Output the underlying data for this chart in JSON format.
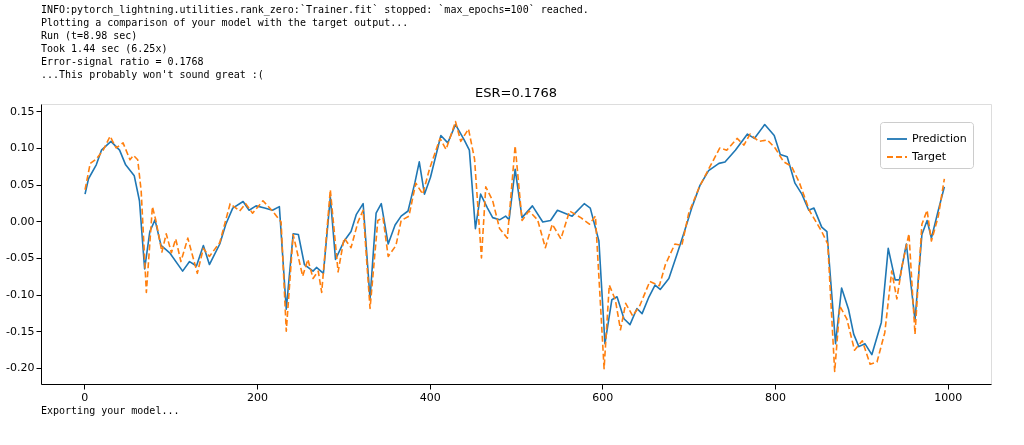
{
  "chart_data": {
    "type": "line",
    "title": "ESR=0.1768",
    "annotations": [
      "INFO:pytorch_lightning.utilities.rank_zero:`Trainer.fit` stopped: `max_epochs=100` reached.",
      "Plotting a comparison of your model with the target output...",
      "Run (t=8.98 sec)",
      "Took 1.44 sec (6.25x)",
      "Error-signal ratio = 0.1768",
      "...This probably won't sound great :(",
      "Exporting your model..."
    ],
    "xlim": [
      -50,
      1050
    ],
    "xticks": [
      0,
      200,
      400,
      600,
      800,
      1000
    ],
    "ylim": [
      -0.222,
      0.16
    ],
    "yticks": [
      {
        "value": -0.2,
        "label": "-0.20"
      },
      {
        "value": -0.15,
        "label": "-0.15"
      },
      {
        "value": -0.1,
        "label": "-0.10"
      },
      {
        "value": -0.05,
        "label": "-0.05"
      },
      {
        "value": 0,
        "label": "0.00"
      },
      {
        "value": 0.05,
        "label": "0.05"
      },
      {
        "value": 0.1,
        "label": "0.10"
      },
      {
        "value": 0.15,
        "label": "0.15"
      }
    ],
    "grid": false,
    "legend": "top right",
    "series": [
      {
        "name": "Prediction",
        "color": "#1f77b4",
        "line_style": "solid",
        "x": [
          1,
          5,
          14,
          20,
          31,
          41,
          48,
          58,
          64,
          70,
          76,
          82,
          89,
          99,
          114,
          122,
          130,
          138,
          145,
          157,
          164,
          172,
          184,
          191,
          199,
          209,
          218,
          226,
          234,
          242,
          248,
          255,
          265,
          269,
          277,
          285,
          291,
          301,
          309,
          315,
          323,
          331,
          338,
          344,
          352,
          360,
          367,
          375,
          383,
          388,
          394,
          401,
          413,
          421,
          430,
          440,
          446,
          453,
          459,
          467,
          473,
          481,
          488,
          492,
          499,
          507,
          519,
          531,
          540,
          548,
          565,
          579,
          586,
          596,
          603,
          611,
          617,
          625,
          632,
          640,
          646,
          654,
          661,
          667,
          677,
          687,
          695,
          704,
          713,
          723,
          735,
          742,
          754,
          768,
          776,
          788,
          799,
          806,
          814,
          823,
          831,
          839,
          845,
          854,
          860,
          870,
          877,
          885,
          891,
          897,
          904,
          912,
          923,
          931,
          939,
          944,
          952,
          962,
          970,
          976,
          981,
          989,
          996
        ],
        "values": [
          0.037,
          0.058,
          0.077,
          0.097,
          0.109,
          0.097,
          0.077,
          0.062,
          0.028,
          -0.065,
          -0.014,
          0.002,
          -0.033,
          -0.043,
          -0.068,
          -0.055,
          -0.061,
          -0.033,
          -0.059,
          -0.031,
          -0.004,
          0.018,
          0.027,
          0.015,
          0.021,
          0.018,
          0.015,
          0.02,
          -0.12,
          -0.017,
          -0.018,
          -0.059,
          -0.068,
          -0.063,
          -0.071,
          0.033,
          -0.052,
          -0.027,
          -0.014,
          0.009,
          0.024,
          -0.106,
          0.011,
          0.024,
          -0.031,
          -0.005,
          0.007,
          0.014,
          0.053,
          0.081,
          0.037,
          0.06,
          0.117,
          0.107,
          0.132,
          0.111,
          0.097,
          -0.01,
          0.037,
          0.018,
          0.005,
          0.002,
          0.007,
          0.002,
          0.071,
          0.005,
          0.021,
          -0.001,
          0.001,
          0.015,
          0.007,
          0.024,
          0.018,
          -0.027,
          -0.167,
          -0.107,
          -0.103,
          -0.133,
          -0.141,
          -0.119,
          -0.126,
          -0.103,
          -0.087,
          -0.093,
          -0.078,
          -0.043,
          -0.014,
          0.02,
          0.049,
          0.069,
          0.079,
          0.081,
          0.097,
          0.119,
          0.113,
          0.132,
          0.117,
          0.091,
          0.088,
          0.052,
          0.037,
          0.015,
          0.018,
          -0.008,
          -0.014,
          -0.167,
          -0.091,
          -0.12,
          -0.154,
          -0.171,
          -0.167,
          -0.182,
          -0.138,
          -0.037,
          -0.08,
          -0.08,
          -0.031,
          -0.135,
          -0.018,
          0.001,
          -0.023,
          0.015,
          0.047
        ]
      },
      {
        "name": "Target",
        "color": "#ff7f0e",
        "line_style": "dashed",
        "x": [
          1,
          7,
          14,
          22,
          30,
          37,
          45,
          53,
          57,
          62,
          66,
          72,
          79,
          83,
          90,
          95,
          101,
          106,
          112,
          120,
          131,
          138,
          145,
          157,
          169,
          180,
          187,
          195,
          207,
          218,
          228,
          234,
          242,
          253,
          259,
          265,
          271,
          275,
          285,
          294,
          301,
          309,
          317,
          323,
          331,
          340,
          346,
          352,
          361,
          367,
          376,
          384,
          392,
          400,
          412,
          419,
          430,
          436,
          445,
          452,
          460,
          465,
          473,
          481,
          490,
          499,
          507,
          515,
          525,
          534,
          542,
          552,
          562,
          575,
          585,
          592,
          602,
          608,
          615,
          621,
          627,
          635,
          643,
          655,
          666,
          673,
          684,
          692,
          700,
          712,
          723,
          736,
          744,
          756,
          764,
          771,
          781,
          791,
          800,
          810,
          819,
          828,
          840,
          854,
          861,
          869,
          875,
          883,
          892,
          901,
          910,
          918,
          927,
          935,
          941,
          947,
          955,
          962,
          970,
          976,
          981,
          989,
          996
        ],
        "values": [
          0.043,
          0.079,
          0.085,
          0.097,
          0.116,
          0.1,
          0.107,
          0.084,
          0.09,
          0.084,
          0.041,
          -0.097,
          0.02,
          0.001,
          -0.042,
          -0.017,
          -0.043,
          -0.024,
          -0.055,
          -0.023,
          -0.071,
          -0.037,
          -0.048,
          -0.029,
          0.024,
          0.014,
          0.024,
          0.011,
          0.028,
          0.014,
          -0.001,
          -0.15,
          -0.018,
          -0.075,
          -0.052,
          -0.078,
          -0.068,
          -0.097,
          0.043,
          -0.069,
          -0.023,
          -0.036,
          -0.001,
          0.015,
          -0.119,
          0.001,
          0.005,
          -0.048,
          -0.033,
          0.001,
          0.007,
          0.052,
          0.037,
          0.072,
          0.113,
          0.098,
          0.136,
          0.109,
          0.126,
          0.085,
          -0.05,
          0.047,
          0.028,
          -0.01,
          -0.023,
          0.103,
          0.001,
          0.014,
          0.002,
          -0.036,
          -0.004,
          -0.024,
          0.014,
          0.005,
          -0.004,
          0.007,
          -0.201,
          -0.087,
          -0.107,
          -0.148,
          -0.112,
          -0.129,
          -0.116,
          -0.082,
          -0.088,
          -0.059,
          -0.031,
          -0.033,
          0.011,
          0.046,
          0.071,
          0.1,
          0.097,
          0.113,
          0.104,
          0.119,
          0.109,
          0.111,
          0.1,
          0.081,
          0.075,
          0.053,
          0.014,
          -0.014,
          -0.031,
          -0.205,
          -0.116,
          -0.133,
          -0.176,
          -0.163,
          -0.195,
          -0.192,
          -0.152,
          -0.068,
          -0.106,
          -0.061,
          -0.017,
          -0.154,
          -0.004,
          0.015,
          -0.027,
          0.007,
          0.058
        ]
      }
    ]
  }
}
